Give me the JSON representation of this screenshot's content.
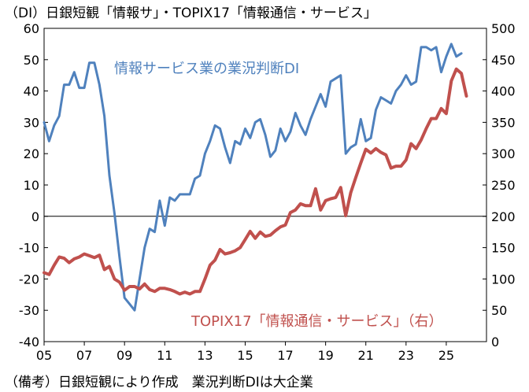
{
  "title": "（DI）日銀短観「情報サ」・TOPIX17「情報通信・サービス」",
  "note": "（備考）日銀短観により作成　業況判断DIは大企業",
  "colors": {
    "di": "#4f81bd",
    "topix": "#c0504d"
  },
  "chart_data": {
    "type": "line",
    "x_tick_labels": [
      "05",
      "07",
      "09",
      "11",
      "13",
      "15",
      "17",
      "19",
      "21",
      "23",
      "25"
    ],
    "x_range": [
      2005.0,
      2027.0
    ],
    "left_axis": {
      "ticks": [
        60,
        50,
        40,
        30,
        20,
        10,
        0,
        -10,
        -20,
        -30,
        -40
      ],
      "ylim": [
        -40,
        60
      ]
    },
    "right_axis": {
      "ticks": [
        500,
        450,
        400,
        350,
        300,
        250,
        200,
        150,
        100,
        50,
        0
      ],
      "ylim": [
        0,
        500
      ]
    },
    "series": [
      {
        "name": "情報サービス業の業況判断DI",
        "axis": "left",
        "points": [
          [
            2005.0,
            30
          ],
          [
            2005.25,
            24
          ],
          [
            2005.5,
            29
          ],
          [
            2005.75,
            32
          ],
          [
            2006.0,
            42
          ],
          [
            2006.25,
            42
          ],
          [
            2006.5,
            46
          ],
          [
            2006.75,
            41
          ],
          [
            2007.0,
            41
          ],
          [
            2007.25,
            49
          ],
          [
            2007.5,
            49
          ],
          [
            2007.75,
            42
          ],
          [
            2008.0,
            32
          ],
          [
            2008.25,
            13
          ],
          [
            2008.5,
            1
          ],
          [
            2008.75,
            -13
          ],
          [
            2009.0,
            -26
          ],
          [
            2009.25,
            -28
          ],
          [
            2009.5,
            -30
          ],
          [
            2009.75,
            -20
          ],
          [
            2010.0,
            -10
          ],
          [
            2010.25,
            -4
          ],
          [
            2010.5,
            -5
          ],
          [
            2010.75,
            5
          ],
          [
            2011.0,
            -3
          ],
          [
            2011.25,
            6
          ],
          [
            2011.5,
            5
          ],
          [
            2011.75,
            7
          ],
          [
            2012.0,
            7
          ],
          [
            2012.25,
            7
          ],
          [
            2012.5,
            12
          ],
          [
            2012.75,
            13
          ],
          [
            2013.0,
            20
          ],
          [
            2013.25,
            24
          ],
          [
            2013.5,
            29
          ],
          [
            2013.75,
            28
          ],
          [
            2014.0,
            22
          ],
          [
            2014.25,
            17
          ],
          [
            2014.5,
            24
          ],
          [
            2014.75,
            23
          ],
          [
            2015.0,
            28
          ],
          [
            2015.25,
            25
          ],
          [
            2015.5,
            30
          ],
          [
            2015.75,
            31
          ],
          [
            2016.0,
            26
          ],
          [
            2016.25,
            19
          ],
          [
            2016.5,
            21
          ],
          [
            2016.75,
            28
          ],
          [
            2017.0,
            24
          ],
          [
            2017.25,
            27
          ],
          [
            2017.5,
            33
          ],
          [
            2017.75,
            29
          ],
          [
            2018.0,
            26
          ],
          [
            2018.25,
            31
          ],
          [
            2018.5,
            35
          ],
          [
            2018.75,
            39
          ],
          [
            2019.0,
            35
          ],
          [
            2019.25,
            43
          ],
          [
            2019.5,
            44
          ],
          [
            2019.75,
            45
          ],
          [
            2020.0,
            20
          ],
          [
            2020.25,
            22
          ],
          [
            2020.5,
            23
          ],
          [
            2020.75,
            31
          ],
          [
            2021.0,
            24
          ],
          [
            2021.25,
            25
          ],
          [
            2021.5,
            34
          ],
          [
            2021.75,
            38
          ],
          [
            2022.0,
            37
          ],
          [
            2022.25,
            36
          ],
          [
            2022.5,
            40
          ],
          [
            2022.75,
            42
          ],
          [
            2023.0,
            45
          ],
          [
            2023.25,
            42
          ],
          [
            2023.5,
            43
          ],
          [
            2023.75,
            54
          ],
          [
            2024.0,
            54
          ],
          [
            2024.25,
            53
          ],
          [
            2024.5,
            54
          ],
          [
            2024.75,
            46
          ],
          [
            2025.0,
            51
          ],
          [
            2025.25,
            55
          ],
          [
            2025.5,
            51
          ],
          [
            2025.75,
            52
          ]
        ]
      },
      {
        "name": "TOPIX17「情報通信・サービス」（右）",
        "axis": "right",
        "points": [
          [
            2005.0,
            110
          ],
          [
            2005.25,
            107
          ],
          [
            2005.5,
            122
          ],
          [
            2005.75,
            135
          ],
          [
            2006.0,
            133
          ],
          [
            2006.25,
            126
          ],
          [
            2006.5,
            132
          ],
          [
            2006.75,
            135
          ],
          [
            2007.0,
            140
          ],
          [
            2007.25,
            137
          ],
          [
            2007.5,
            134
          ],
          [
            2007.75,
            138
          ],
          [
            2008.0,
            115
          ],
          [
            2008.25,
            120
          ],
          [
            2008.5,
            100
          ],
          [
            2008.75,
            95
          ],
          [
            2009.0,
            82
          ],
          [
            2009.25,
            88
          ],
          [
            2009.5,
            88
          ],
          [
            2009.75,
            84
          ],
          [
            2010.0,
            92
          ],
          [
            2010.25,
            83
          ],
          [
            2010.5,
            80
          ],
          [
            2010.75,
            85
          ],
          [
            2011.0,
            85
          ],
          [
            2011.25,
            83
          ],
          [
            2011.5,
            80
          ],
          [
            2011.75,
            76
          ],
          [
            2012.0,
            79
          ],
          [
            2012.25,
            76
          ],
          [
            2012.5,
            80
          ],
          [
            2012.75,
            80
          ],
          [
            2013.0,
            100
          ],
          [
            2013.25,
            122
          ],
          [
            2013.5,
            130
          ],
          [
            2013.75,
            147
          ],
          [
            2014.0,
            140
          ],
          [
            2014.25,
            142
          ],
          [
            2014.5,
            145
          ],
          [
            2014.75,
            150
          ],
          [
            2015.0,
            163
          ],
          [
            2015.25,
            176
          ],
          [
            2015.5,
            165
          ],
          [
            2015.75,
            175
          ],
          [
            2016.0,
            168
          ],
          [
            2016.25,
            170
          ],
          [
            2016.5,
            177
          ],
          [
            2016.75,
            183
          ],
          [
            2017.0,
            186
          ],
          [
            2017.25,
            206
          ],
          [
            2017.5,
            210
          ],
          [
            2017.75,
            220
          ],
          [
            2018.0,
            217
          ],
          [
            2018.25,
            217
          ],
          [
            2018.5,
            244
          ],
          [
            2018.75,
            210
          ],
          [
            2019.0,
            225
          ],
          [
            2019.25,
            228
          ],
          [
            2019.5,
            230
          ],
          [
            2019.75,
            246
          ],
          [
            2020.0,
            201
          ],
          [
            2020.25,
            238
          ],
          [
            2020.5,
            262
          ],
          [
            2020.75,
            285
          ],
          [
            2021.0,
            307
          ],
          [
            2021.25,
            301
          ],
          [
            2021.5,
            308
          ],
          [
            2021.75,
            302
          ],
          [
            2022.0,
            298
          ],
          [
            2022.25,
            277
          ],
          [
            2022.5,
            280
          ],
          [
            2022.75,
            280
          ],
          [
            2023.0,
            290
          ],
          [
            2023.25,
            316
          ],
          [
            2023.5,
            308
          ],
          [
            2023.75,
            322
          ],
          [
            2024.0,
            340
          ],
          [
            2024.25,
            356
          ],
          [
            2024.5,
            356
          ],
          [
            2024.75,
            372
          ],
          [
            2025.0,
            364
          ],
          [
            2025.25,
            416
          ],
          [
            2025.5,
            435
          ],
          [
            2025.75,
            428
          ],
          [
            2026.0,
            392
          ]
        ]
      }
    ],
    "annotations": [
      {
        "text": "情報サービス業の業況判断DI",
        "series": 0
      },
      {
        "text": "TOPIX17「情報通信・サービス」（右）",
        "series": 1
      }
    ],
    "grid": false
  }
}
